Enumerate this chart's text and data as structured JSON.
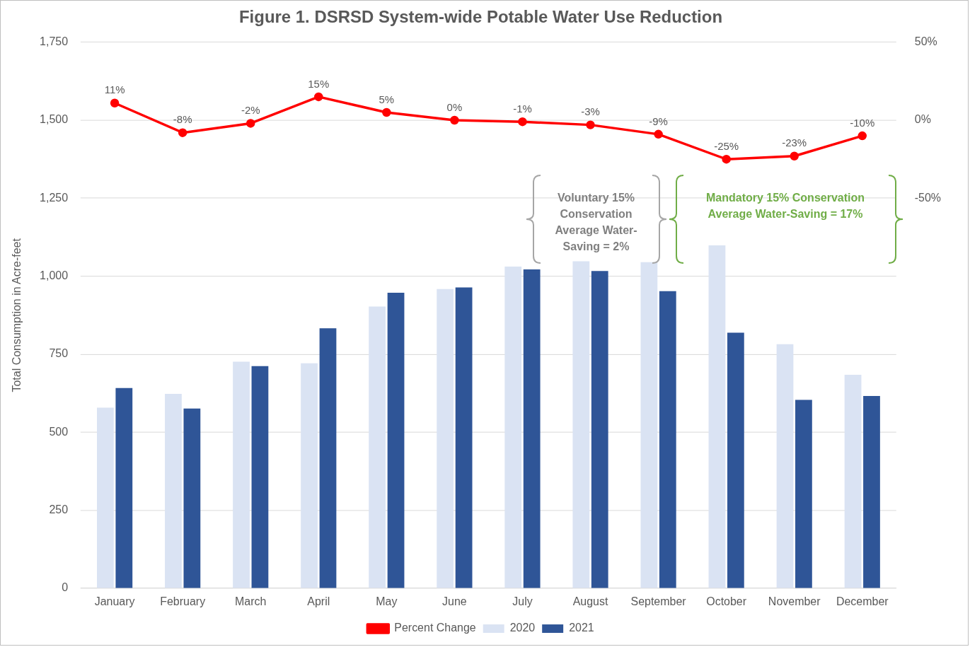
{
  "chart_data": {
    "type": "bar",
    "title": "Figure 1. DSRSD System-wide Potable Water Use Reduction",
    "ylabel": "Total Consumption in Acre-feet",
    "categories": [
      "January",
      "February",
      "March",
      "April",
      "May",
      "June",
      "July",
      "August",
      "September",
      "October",
      "November",
      "December"
    ],
    "series": [
      {
        "name": "2020",
        "color": "#dae3f3",
        "values": [
          579,
          623,
          726,
          721,
          903,
          959,
          1031,
          1048,
          1045,
          1099,
          782,
          684
        ]
      },
      {
        "name": "2021",
        "color": "#2f5597",
        "values": [
          642,
          576,
          712,
          833,
          947,
          964,
          1022,
          1017,
          952,
          819,
          604,
          616
        ]
      },
      {
        "name": "Percent Change",
        "type": "line",
        "axis": "y2",
        "color": "#ff0000",
        "values": [
          11,
          -8,
          -2,
          15,
          5,
          0,
          -1,
          -3,
          -9,
          -25,
          -23,
          -10
        ],
        "value_labels": [
          "11%",
          "-8%",
          "-2%",
          "15%",
          "5%",
          "0%",
          "-1%",
          "-3%",
          "-9%",
          "-25%",
          "-23%",
          "-10%"
        ]
      }
    ],
    "ylim": [
      0,
      1750
    ],
    "yticks": [
      0,
      250,
      500,
      750,
      {
        "value": 1000,
        "label": "1,000"
      },
      {
        "value": 1250,
        "label": "1,250"
      },
      {
        "value": 1500,
        "label": "1,500"
      },
      {
        "value": 1750,
        "label": "1,750"
      }
    ],
    "y2lim": [
      -300,
      50
    ],
    "y2ticks": [
      {
        "value": -50,
        "label": "-50%"
      },
      {
        "value": 0,
        "label": "0%"
      },
      {
        "value": 50,
        "label": "50%"
      }
    ],
    "annotations": [
      "Voluntary 15% Conservation Average Water-Saving = 2%",
      "Mandatory 15% Conservation Average Water-Saving = 17%"
    ],
    "grid": "y",
    "legend": "bottom",
    "marker": "circle",
    "line_style": "solid"
  }
}
